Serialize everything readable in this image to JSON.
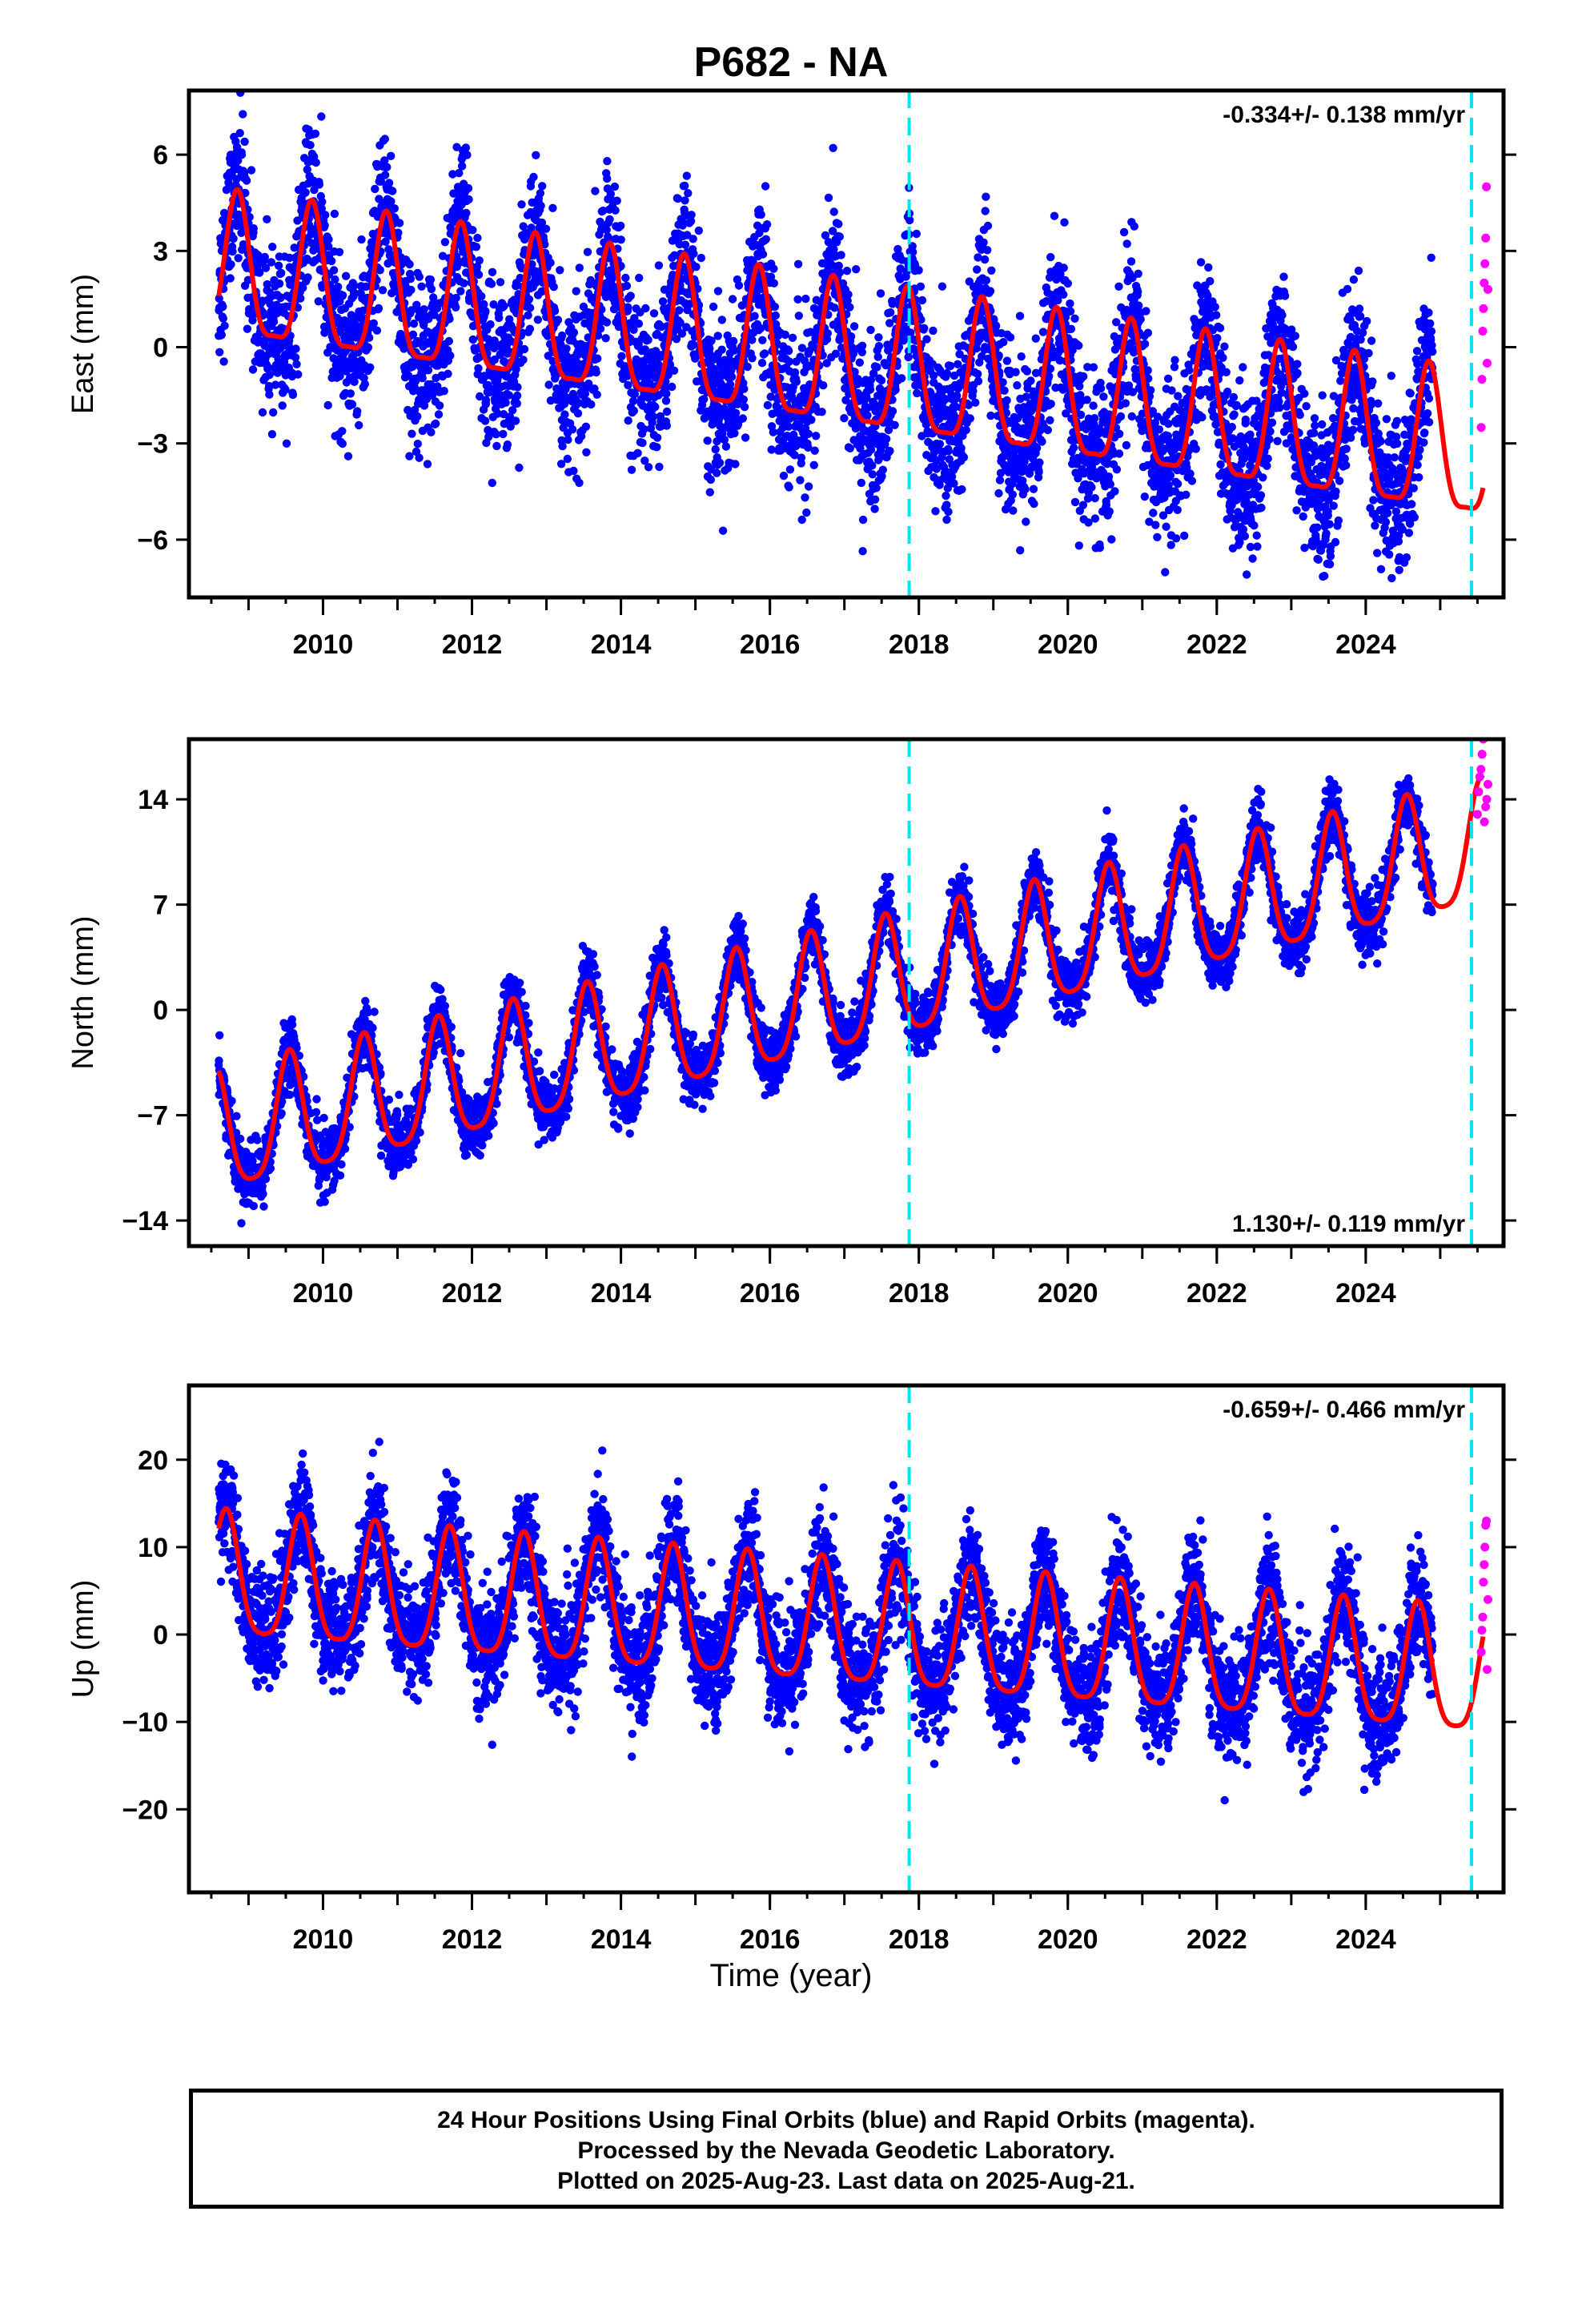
{
  "title": "P682 - NA",
  "xlabel": "Time (year)",
  "footer": {
    "line1": "24 Hour Positions Using Final Orbits (blue) and Rapid Orbits (magenta).",
    "line2": "Processed by the Nevada Geodetic Laboratory.",
    "line3": "Plotted on 2025-Aug-23. Last data on 2025-Aug-21."
  },
  "colors": {
    "final": "#0000ff",
    "rapid": "#ff00ff",
    "model": "#ff0000",
    "marker": "#00e5ee"
  },
  "chart_data": [
    {
      "type": "scatter",
      "component": "east",
      "ylabel": "East (mm)",
      "rate": "-0.334+/- 0.138 mm/yr",
      "rate_position": "top-right",
      "xlim": [
        2008.2,
        2025.85
      ],
      "ylim": [
        -7.8,
        8.0
      ],
      "xticks": [
        2010,
        2012,
        2014,
        2016,
        2018,
        2020,
        2022,
        2024
      ],
      "yticks": [
        -6,
        -3,
        0,
        3,
        6
      ],
      "ytick_labels": [
        "−6",
        "−3",
        "0",
        "3",
        "6"
      ],
      "event_lines": [
        2017.87,
        2025.42
      ],
      "model": {
        "start": 2008.6,
        "end": 2025.58,
        "offset0": 2.2,
        "trend": -0.334,
        "amp": 2.2,
        "phase_year": 0.85,
        "amp2": 0.6
      },
      "final_data": {
        "start": 2008.6,
        "end": 2024.9,
        "noise": 1.2
      },
      "rapid_data": {
        "start": 2025.55,
        "end": 2025.64,
        "values": [
          -2.5,
          -1.0,
          0.5,
          1.2,
          2.0,
          2.6,
          3.4,
          5.0,
          -0.5,
          1.8
        ]
      }
    },
    {
      "type": "scatter",
      "component": "north",
      "ylabel": "North (mm)",
      "rate": "1.130+/- 0.119 mm/yr",
      "rate_position": "bottom-right",
      "xlim": [
        2008.2,
        2025.85
      ],
      "ylim": [
        -15.7,
        18.0
      ],
      "xticks": [
        2010,
        2012,
        2014,
        2016,
        2018,
        2020,
        2022,
        2024
      ],
      "yticks": [
        -14,
        -7,
        0,
        7,
        14
      ],
      "ytick_labels": [
        "−14",
        "−7",
        "0",
        "7",
        "14"
      ],
      "event_lines": [
        2017.87,
        2025.42
      ],
      "model": {
        "start": 2008.6,
        "end": 2025.58,
        "offset0": -8.5,
        "trend": 1.13,
        "amp": 4.0,
        "phase_year": 0.55,
        "amp2": 0.8
      },
      "final_data": {
        "start": 2008.6,
        "end": 2024.9,
        "noise": 1.0
      },
      "rapid_data": {
        "start": 2025.5,
        "end": 2025.64,
        "values": [
          13.0,
          14.5,
          15.5,
          16.0,
          17.0,
          18.0,
          12.5,
          13.5,
          14.0,
          15.0
        ]
      }
    },
    {
      "type": "scatter",
      "component": "up",
      "ylabel": "Up (mm)",
      "rate": "-0.659+/- 0.466 mm/yr",
      "rate_position": "top-right",
      "xlim": [
        2008.2,
        2025.85
      ],
      "ylim": [
        -29.5,
        28.5
      ],
      "xticks": [
        2010,
        2012,
        2014,
        2016,
        2018,
        2020,
        2022,
        2024
      ],
      "yticks": [
        -20,
        -10,
        0,
        10,
        20
      ],
      "ytick_labels": [
        "−20",
        "−10",
        "0",
        "10",
        "20"
      ],
      "event_lines": [
        2017.87,
        2025.42
      ],
      "model": {
        "start": 2008.6,
        "end": 2025.58,
        "offset0": 6.0,
        "trend": -0.659,
        "amp": 7.0,
        "phase_year": 0.7,
        "amp2": 1.5
      },
      "final_data": {
        "start": 2008.6,
        "end": 2024.9,
        "noise": 3.2
      },
      "rapid_data": {
        "start": 2025.55,
        "end": 2025.64,
        "values": [
          -2.0,
          0.5,
          2.0,
          6.0,
          8.0,
          10.0,
          12.5,
          13.0,
          -4.0,
          4.0
        ]
      }
    }
  ]
}
